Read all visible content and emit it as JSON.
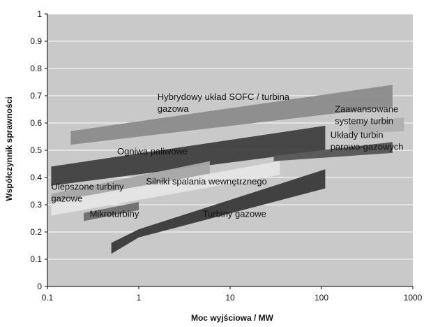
{
  "chart_data": {
    "type": "area",
    "title": "",
    "xlabel": "Moc wyjściowa / MW",
    "ylabel": "Współczynnik sprawności",
    "x_scale": "log",
    "xlim": [
      0.1,
      1000
    ],
    "ylim": [
      0,
      1
    ],
    "x_ticks": [
      "0.1",
      "1",
      "10",
      "100",
      "1000"
    ],
    "y_ticks": [
      "0",
      "0.1",
      "0.2",
      "0.3",
      "0.4",
      "0.5",
      "0.6",
      "0.7",
      "0.8",
      "0.9",
      "1"
    ],
    "grid": true,
    "colors": {
      "plot_background": "#c9c9c9",
      "gridline": "#ffffff",
      "axis": "#000000"
    },
    "bands": [
      {
        "label": "Hybrydowy układ SOFC / turbina gazowa",
        "color": "#8c8c8c",
        "upper": [
          [
            0.18,
            0.57
          ],
          [
            600,
            0.74
          ]
        ],
        "lower": [
          [
            0.18,
            0.52
          ],
          [
            600,
            0.66
          ]
        ]
      },
      {
        "label": "Zaawansowane systemy turbin",
        "color": "#b0b0b0",
        "upper": [
          [
            200,
            0.6
          ],
          [
            800,
            0.62
          ]
        ],
        "lower": [
          [
            200,
            0.56
          ],
          [
            800,
            0.57
          ]
        ]
      },
      {
        "label": "Ogniwa paliwowe",
        "color": "#404040",
        "upper": [
          [
            0.11,
            0.44
          ],
          [
            110,
            0.59
          ]
        ],
        "lower": [
          [
            0.11,
            0.37
          ],
          [
            110,
            0.5
          ]
        ]
      },
      {
        "label": "Układy turbin parowo-gazowych",
        "color": "#555555",
        "upper": [
          [
            30,
            0.48
          ],
          [
            600,
            0.53
          ]
        ],
        "lower": [
          [
            30,
            0.46
          ],
          [
            600,
            0.49
          ]
        ]
      },
      {
        "label": "Ulepszone turbiny gazowe",
        "color": "#a8a8a8",
        "upper": [
          [
            0.11,
            0.34
          ],
          [
            6,
            0.46
          ]
        ],
        "lower": [
          [
            0.11,
            0.29
          ],
          [
            6,
            0.41
          ]
        ]
      },
      {
        "label": "Silniki spalania wewnętrznego",
        "color": "#e6e6e6",
        "upper": [
          [
            0.11,
            0.31
          ],
          [
            35,
            0.46
          ]
        ],
        "lower": [
          [
            0.11,
            0.26
          ],
          [
            35,
            0.41
          ]
        ]
      },
      {
        "label": "Mikroturbiny",
        "color": "#6e6e6e",
        "upper": [
          [
            0.25,
            0.27
          ],
          [
            1,
            0.31
          ]
        ],
        "lower": [
          [
            0.25,
            0.24
          ],
          [
            1,
            0.28
          ]
        ]
      },
      {
        "label": "Turbiny gazowe",
        "color": "#3a3a3a",
        "upper": [
          [
            0.5,
            0.16
          ],
          [
            1,
            0.21
          ],
          [
            110,
            0.43
          ]
        ],
        "lower": [
          [
            0.5,
            0.12
          ],
          [
            1,
            0.18
          ],
          [
            110,
            0.36
          ]
        ]
      }
    ],
    "annotations": [
      {
        "lines": [
          "Hybrydowy układ SOFC / turbina",
          "gazowa"
        ],
        "x": 1.6,
        "y": 0.685
      },
      {
        "lines": [
          "Zaawansowane",
          "systemy turbin"
        ],
        "x": 140,
        "y": 0.64
      },
      {
        "lines": [
          "Ogniwa paliwowe"
        ],
        "x": 0.58,
        "y": 0.485
      },
      {
        "lines": [
          "Układy turbin",
          "parowo-gazowych"
        ],
        "x": 125,
        "y": 0.545
      },
      {
        "lines": [
          "Ulepszone turbiny",
          "gazowe"
        ],
        "x": 0.11,
        "y": 0.355
      },
      {
        "lines": [
          "Silniki spalania wewnętrznego"
        ],
        "x": 1.2,
        "y": 0.375
      },
      {
        "lines": [
          "Mikroturbiny"
        ],
        "x": 0.29,
        "y": 0.255
      },
      {
        "lines": [
          "Turbiny gazowe"
        ],
        "x": 5,
        "y": 0.255
      }
    ]
  }
}
